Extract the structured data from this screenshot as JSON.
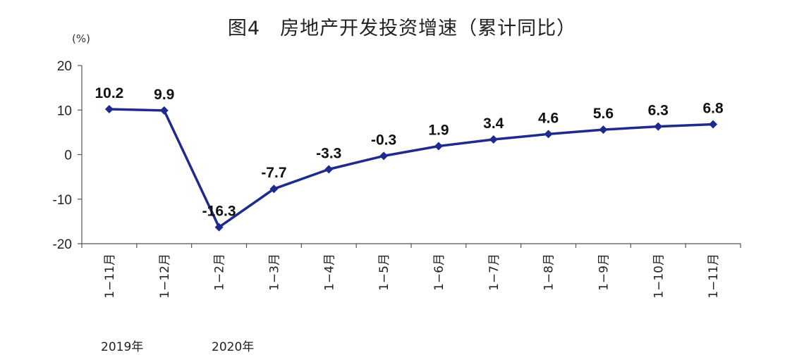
{
  "title": "图4　房地产开发投资增速（累计同比）",
  "unit": "(%)",
  "year_labels": [
    "2019年",
    "2020年"
  ],
  "colors": {
    "series": "#1f2a8f",
    "axis": "#555555"
  },
  "chart_data": {
    "type": "line",
    "categories": [
      "1-11月",
      "1-12月",
      "1-2月",
      "1-3月",
      "1-4月",
      "1-5月",
      "1-6月",
      "1-7月",
      "1-8月",
      "1-9月",
      "1-10月",
      "1-11月"
    ],
    "x_tick_labels": [
      "1−11月",
      "1−12月",
      "1−2月",
      "1−3月",
      "1−4月",
      "1−5月",
      "1−6月",
      "1−7月",
      "1−8月",
      "1−9月",
      "1−10月",
      "1−11月"
    ],
    "series": [
      {
        "values": [
          10.2,
          9.9,
          -16.3,
          -7.7,
          -3.3,
          -0.3,
          1.9,
          3.4,
          4.6,
          5.6,
          6.3,
          6.8
        ]
      }
    ],
    "data_labels": [
      "10.2",
      "9.9",
      "-16.3",
      "-7.7",
      "-3.3",
      "-0.3",
      "1.9",
      "3.4",
      "4.6",
      "5.6",
      "6.3",
      "6.8"
    ],
    "y_ticks": [
      20,
      10,
      0,
      -10,
      -20
    ],
    "y_tick_labels": [
      "20",
      "10",
      "0",
      "-10",
      "-20"
    ],
    "ylim": [
      -20,
      20
    ],
    "grid": false,
    "legend": "none"
  }
}
